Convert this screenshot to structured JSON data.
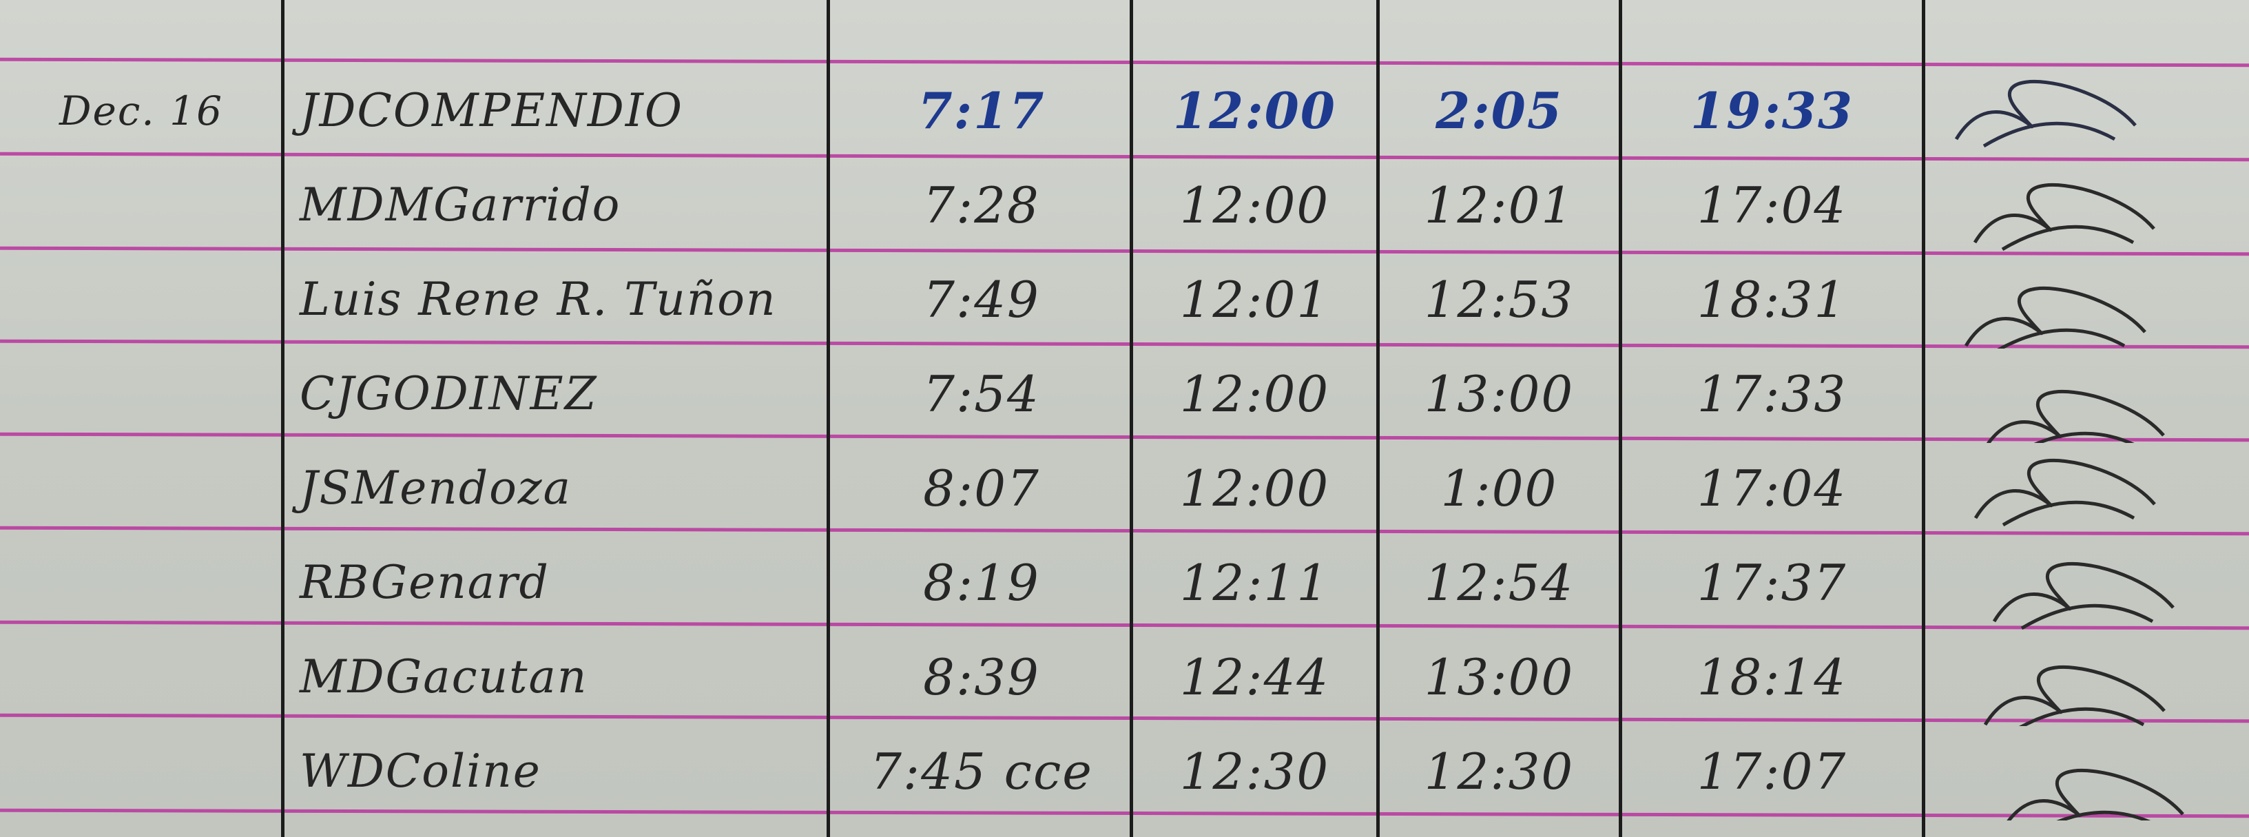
{
  "date": "Dec. 16",
  "rows": [
    {
      "name": "JDCOMPENDIO",
      "time_in": "7:17",
      "lunch_out": "12:00",
      "lunch_in": "2:05",
      "time_out": "19:33",
      "ink": "blue"
    },
    {
      "name": "MDMGarrido",
      "time_in": "7:28",
      "lunch_out": "12:00",
      "lunch_in": "12:01",
      "time_out": "17:04",
      "ink": "black"
    },
    {
      "name": "Luis Rene R. Tuñon",
      "time_in": "7:49",
      "lunch_out": "12:01",
      "lunch_in": "12:53",
      "time_out": "18:31",
      "ink": "black"
    },
    {
      "name": "CJGODINEZ",
      "time_in": "7:54",
      "lunch_out": "12:00",
      "lunch_in": "13:00",
      "time_out": "17:33",
      "ink": "black"
    },
    {
      "name": "JSMendoza",
      "time_in": "8:07",
      "lunch_out": "12:00",
      "lunch_in": "1:00",
      "time_out": "17:04",
      "ink": "black"
    },
    {
      "name": "RBGenard",
      "time_in": "8:19",
      "lunch_out": "12:11",
      "lunch_in": "12:54",
      "time_out": "17:37",
      "ink": "black"
    },
    {
      "name": "MDGacutan",
      "time_in": "8:39",
      "lunch_out": "12:44",
      "lunch_in": "13:00",
      "time_out": "18:14",
      "ink": "black"
    },
    {
      "name": "WDColine",
      "time_in": "7:45 cce",
      "lunch_out": "12:30",
      "lunch_in": "12:30",
      "time_out": "17:07",
      "ink": "black"
    }
  ],
  "colors": {
    "rule_lines": "#b9329e",
    "blue_ink": "#1d3a8f",
    "black_ink": "#262626",
    "paper": "#cdd1ca"
  }
}
